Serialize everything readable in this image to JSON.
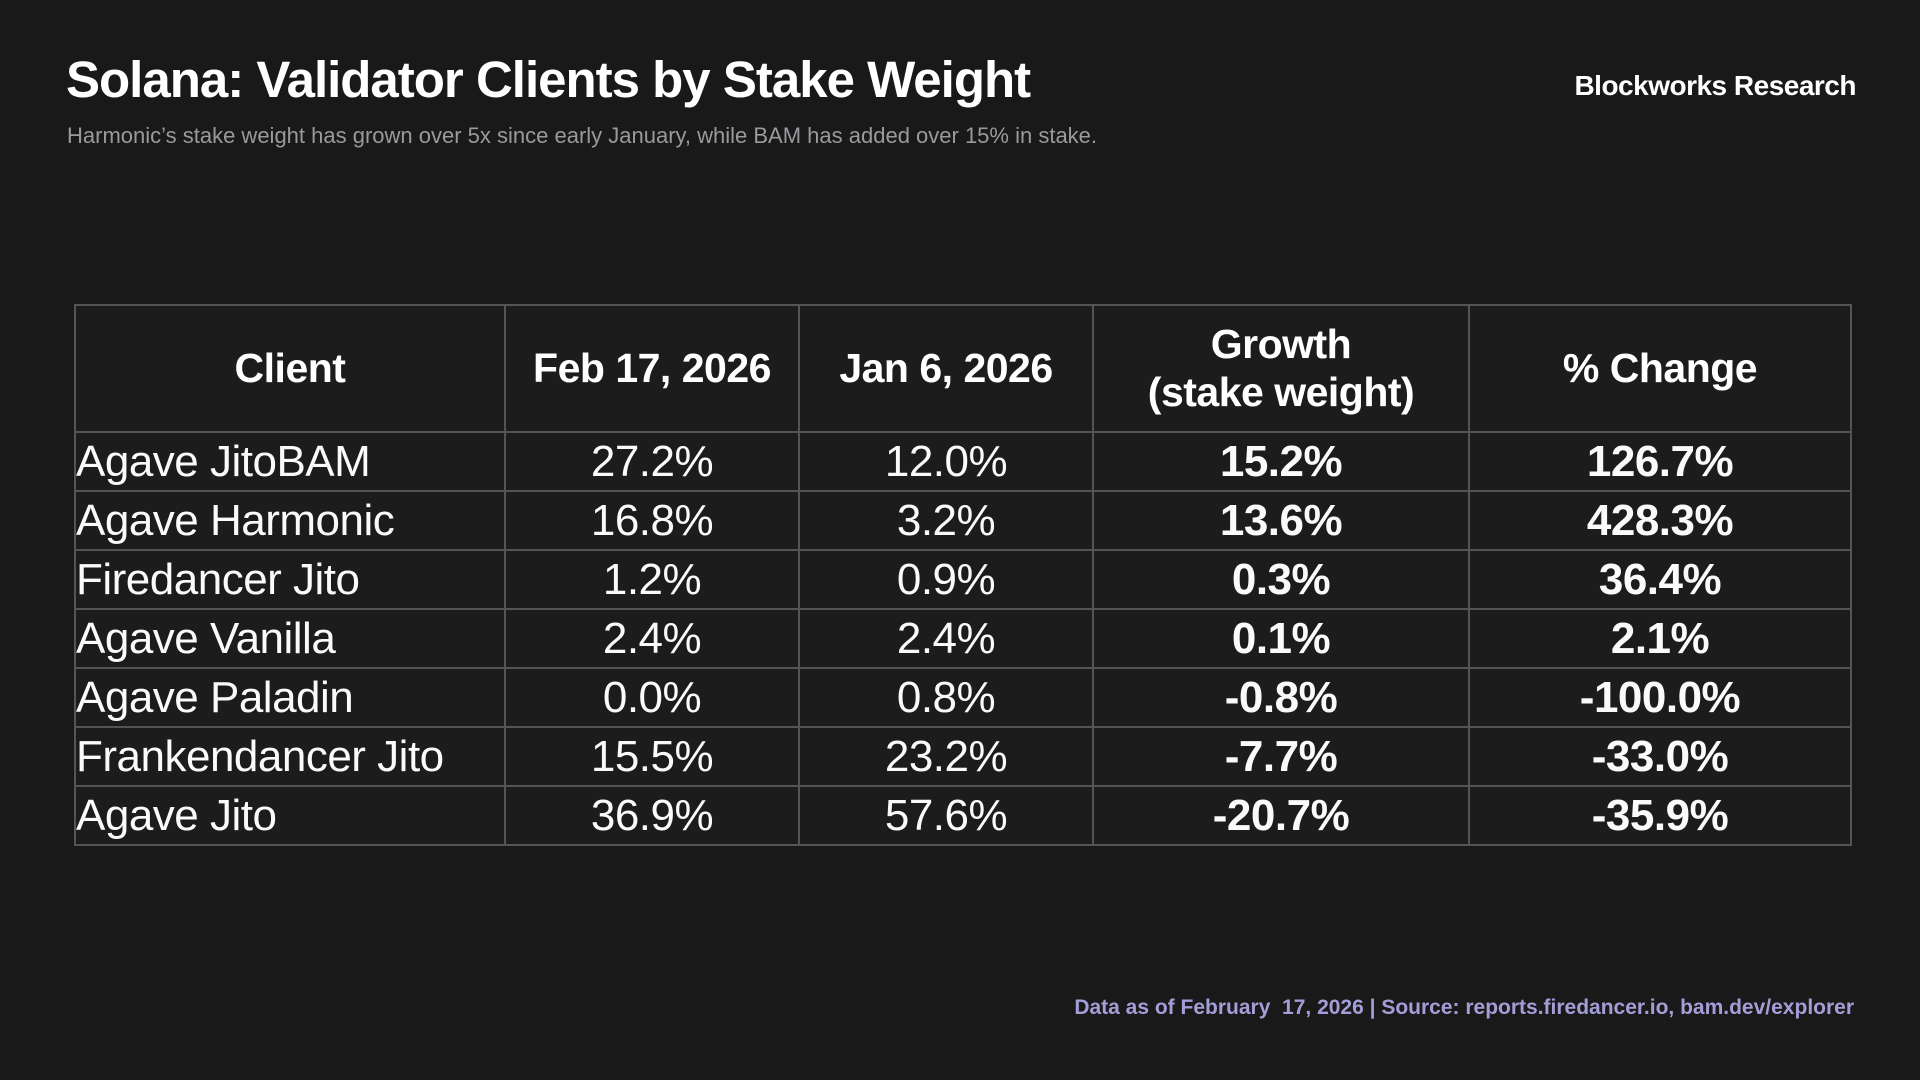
{
  "header": {
    "title": "Solana: Validator Clients by Stake Weight",
    "subtitle": "Harmonic’s stake weight has grown over 5x since early January, while BAM has added over 15% in stake.",
    "brand": "Blockworks Research"
  },
  "footer": {
    "text": "Data as of February  17, 2026 | Source: reports.firedancer.io, bam.dev/explorer"
  },
  "colors": {
    "background": "#191919",
    "cell_background": "#1c1c1c",
    "grid_border": "#545454",
    "positive_fill": "#5233cb",
    "negative_fill": "#e63a3a",
    "title_text": "#ffffff",
    "subtitle_text": "#9a9a9e",
    "footer_text": "#a49ed8"
  },
  "chart_data": {
    "type": "table",
    "title": "Solana: Validator Clients by Stake Weight",
    "subtitle": "Harmonic’s stake weight has grown over 5x since early January, while BAM has added over 15% in stake.",
    "columns": [
      "Client",
      "Feb 17, 2026",
      "Jan 6, 2026",
      "Growth (stake weight)",
      "% Change"
    ],
    "growth_header": {
      "line1": "Growth",
      "line2": "(stake weight)"
    },
    "rows": [
      {
        "client": "Agave JitoBAM",
        "feb17": "27.2%",
        "jan6": "12.0%",
        "growth": "15.2%",
        "pct_change": "126.7%",
        "direction": "positive"
      },
      {
        "client": "Agave Harmonic",
        "feb17": "16.8%",
        "jan6": "3.2%",
        "growth": "13.6%",
        "pct_change": "428.3%",
        "direction": "positive"
      },
      {
        "client": "Firedancer Jito",
        "feb17": "1.2%",
        "jan6": "0.9%",
        "growth": "0.3%",
        "pct_change": "36.4%",
        "direction": "positive"
      },
      {
        "client": "Agave Vanilla",
        "feb17": "2.4%",
        "jan6": "2.4%",
        "growth": "0.1%",
        "pct_change": "2.1%",
        "direction": "positive"
      },
      {
        "client": "Agave Paladin",
        "feb17": "0.0%",
        "jan6": "0.8%",
        "growth": "-0.8%",
        "pct_change": "-100.0%",
        "direction": "negative"
      },
      {
        "client": "Frankendancer Jito",
        "feb17": "15.5%",
        "jan6": "23.2%",
        "growth": "-7.7%",
        "pct_change": "-33.0%",
        "direction": "negative"
      },
      {
        "client": "Agave Jito",
        "feb17": "36.9%",
        "jan6": "57.6%",
        "growth": "-20.7%",
        "pct_change": "-35.9%",
        "direction": "negative"
      }
    ]
  }
}
